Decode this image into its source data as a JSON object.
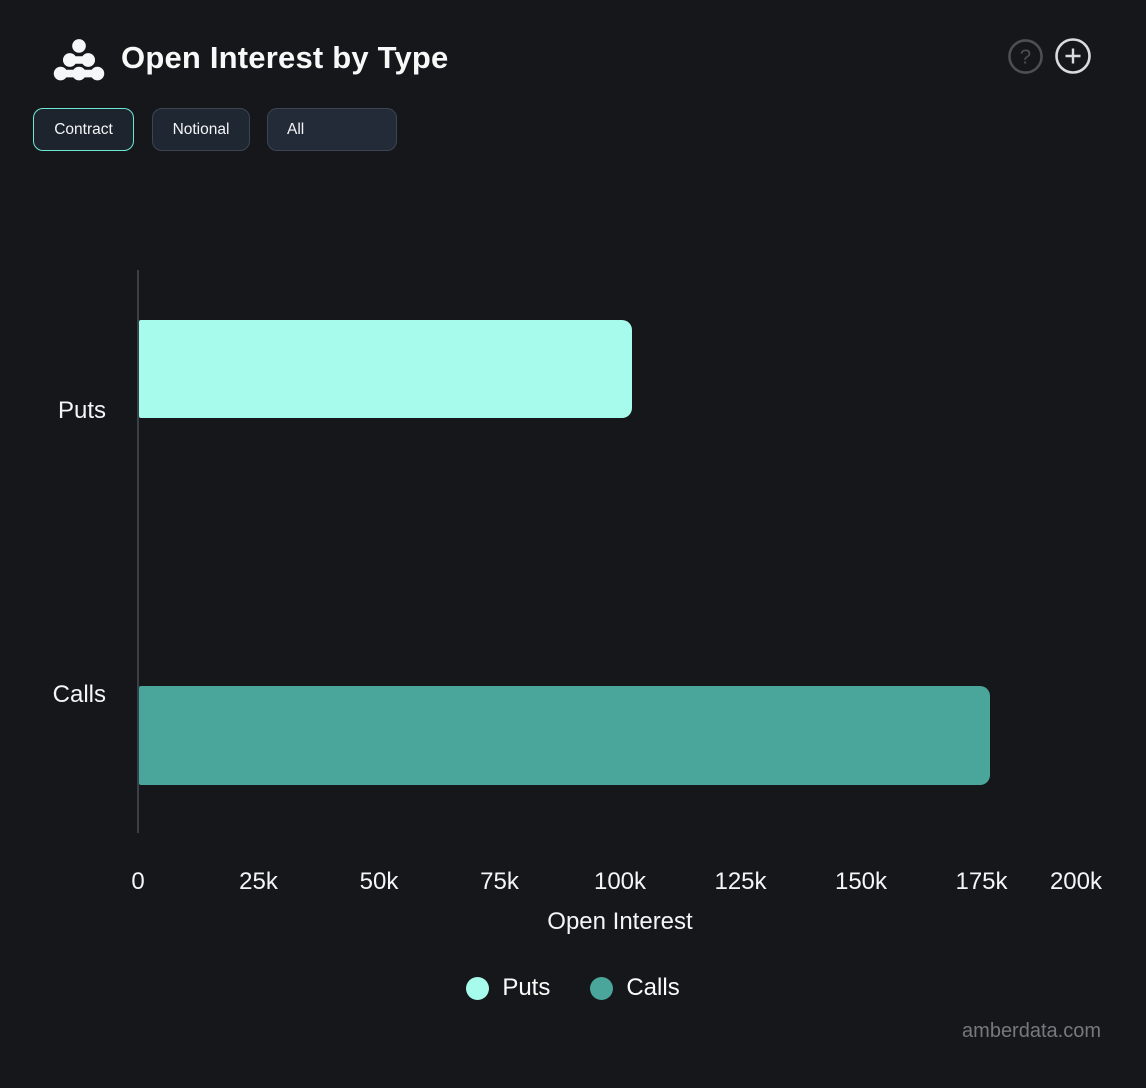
{
  "header": {
    "title": "Open Interest by Type"
  },
  "toolbar": {
    "unit_toggle": [
      {
        "label": "Contract",
        "selected": true
      },
      {
        "label": "Notional",
        "selected": false
      }
    ],
    "filter": {
      "value": "All"
    }
  },
  "chart_data": {
    "type": "bar",
    "orientation": "horizontal",
    "title": "Open Interest by Type",
    "categories": [
      "Puts",
      "Calls"
    ],
    "series": [
      {
        "name": "Puts",
        "color": "#a7fbec",
        "category": "Puts",
        "value": 102200
      },
      {
        "name": "Calls",
        "color": "#4aa59b",
        "category": "Calls",
        "value": 176500
      }
    ],
    "xlabel": "Open Interest",
    "ylabel": "",
    "xlim": [
      0,
      200000
    ],
    "x_tick_labels": [
      "0",
      "25k",
      "50k",
      "75k",
      "100k",
      "125k",
      "150k",
      "175k",
      "200k"
    ],
    "x_tick_values": [
      0,
      25000,
      50000,
      75000,
      100000,
      125000,
      150000,
      175000,
      200000
    ],
    "grid": false,
    "legend_position": "bottom"
  },
  "colors": {
    "background": "#16171a",
    "selected_button_border": "#6ee8d6",
    "axis_line": "#3a4047",
    "puts_bar": "#a7fbec",
    "calls_bar": "#4aa59b"
  },
  "watermark": "amberdata.com"
}
